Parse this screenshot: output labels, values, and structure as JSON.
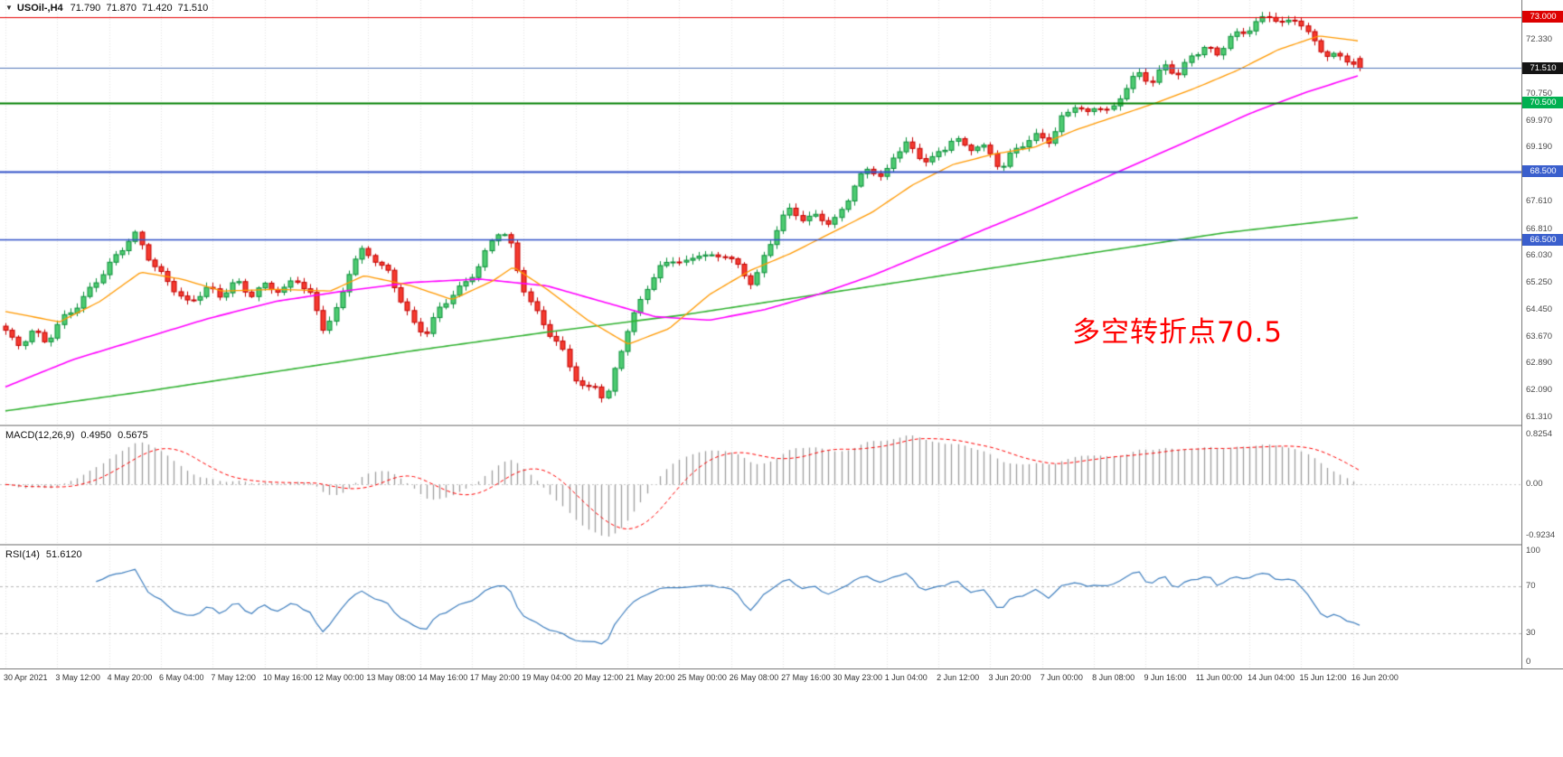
{
  "header": {
    "dropdown_icon": "▼",
    "symbol_period": "USOil-,H4",
    "open": "71.790",
    "high": "71.870",
    "low": "71.420",
    "close": "71.510"
  },
  "annotation": {
    "text": "多空转折点70.5",
    "color": "#ff0000"
  },
  "indicator_labels": {
    "macd": {
      "name": "MACD(12,26,9)",
      "value1": "0.4950",
      "value2": "0.5675"
    },
    "rsi": {
      "name": "RSI(14)",
      "value": "51.6120"
    }
  },
  "chart_data": {
    "type": "candlestick",
    "symbol": "USOil-",
    "timeframe": "H4",
    "candle_count": 210,
    "bars_per_label": 8,
    "price_range": [
      61.1,
      73.5
    ],
    "last_candle": {
      "open": 71.79,
      "high": 71.87,
      "low": 71.42,
      "close": 71.51
    },
    "up_fill": "#4ecb71",
    "up_border": "#0b8f3a",
    "down_fill": "#f43b2f",
    "down_border": "#c40000",
    "close_path": [
      [
        0.0,
        63.8
      ],
      [
        0.008,
        63.35
      ],
      [
        0.02,
        63.9
      ],
      [
        0.03,
        63.55
      ],
      [
        0.042,
        64.15
      ],
      [
        0.055,
        64.6
      ],
      [
        0.068,
        65.4
      ],
      [
        0.08,
        66.0
      ],
      [
        0.09,
        66.45
      ],
      [
        0.096,
        66.6
      ],
      [
        0.104,
        66.0
      ],
      [
        0.113,
        65.55
      ],
      [
        0.125,
        65.1
      ],
      [
        0.135,
        64.65
      ],
      [
        0.148,
        65.05
      ],
      [
        0.158,
        64.8
      ],
      [
        0.17,
        65.3
      ],
      [
        0.181,
        64.95
      ],
      [
        0.192,
        65.2
      ],
      [
        0.204,
        64.9
      ],
      [
        0.214,
        65.35
      ],
      [
        0.225,
        64.9
      ],
      [
        0.235,
        63.95
      ],
      [
        0.245,
        64.5
      ],
      [
        0.255,
        65.7
      ],
      [
        0.263,
        66.1
      ],
      [
        0.272,
        65.95
      ],
      [
        0.282,
        65.6
      ],
      [
        0.292,
        64.8
      ],
      [
        0.302,
        63.95
      ],
      [
        0.31,
        63.7
      ],
      [
        0.32,
        64.4
      ],
      [
        0.33,
        64.95
      ],
      [
        0.34,
        65.3
      ],
      [
        0.35,
        65.8
      ],
      [
        0.358,
        66.35
      ],
      [
        0.365,
        66.75
      ],
      [
        0.372,
        66.45
      ],
      [
        0.38,
        65.3
      ],
      [
        0.39,
        64.55
      ],
      [
        0.4,
        63.9
      ],
      [
        0.41,
        63.3
      ],
      [
        0.42,
        62.45
      ],
      [
        0.428,
        62.05
      ],
      [
        0.436,
        62.3
      ],
      [
        0.443,
        61.8
      ],
      [
        0.451,
        62.9
      ],
      [
        0.458,
        63.75
      ],
      [
        0.466,
        64.4
      ],
      [
        0.474,
        65.1
      ],
      [
        0.482,
        65.6
      ],
      [
        0.492,
        66.0
      ],
      [
        0.502,
        65.85
      ],
      [
        0.512,
        66.1
      ],
      [
        0.522,
        65.9
      ],
      [
        0.532,
        66.05
      ],
      [
        0.544,
        65.6
      ],
      [
        0.552,
        65.25
      ],
      [
        0.562,
        66.2
      ],
      [
        0.572,
        67.0
      ],
      [
        0.58,
        67.35
      ],
      [
        0.59,
        67.05
      ],
      [
        0.6,
        67.3
      ],
      [
        0.61,
        66.95
      ],
      [
        0.618,
        67.4
      ],
      [
        0.628,
        68.1
      ],
      [
        0.638,
        68.6
      ],
      [
        0.648,
        68.3
      ],
      [
        0.657,
        69.1
      ],
      [
        0.665,
        69.35
      ],
      [
        0.673,
        68.9
      ],
      [
        0.682,
        68.75
      ],
      [
        0.692,
        69.05
      ],
      [
        0.7,
        69.55
      ],
      [
        0.71,
        69.2
      ],
      [
        0.72,
        69.3
      ],
      [
        0.728,
        68.9
      ],
      [
        0.735,
        68.5
      ],
      [
        0.744,
        69.05
      ],
      [
        0.752,
        69.35
      ],
      [
        0.762,
        69.6
      ],
      [
        0.772,
        69.4
      ],
      [
        0.78,
        70.0
      ],
      [
        0.79,
        70.4
      ],
      [
        0.798,
        70.1
      ],
      [
        0.806,
        70.5
      ],
      [
        0.816,
        70.25
      ],
      [
        0.826,
        70.9
      ],
      [
        0.836,
        71.3
      ],
      [
        0.846,
        71.05
      ],
      [
        0.856,
        71.6
      ],
      [
        0.866,
        71.4
      ],
      [
        0.876,
        71.9
      ],
      [
        0.886,
        72.1
      ],
      [
        0.894,
        71.8
      ],
      [
        0.904,
        72.4
      ],
      [
        0.914,
        72.6
      ],
      [
        0.924,
        72.9
      ],
      [
        0.934,
        73.05
      ],
      [
        0.944,
        72.7
      ],
      [
        0.954,
        72.95
      ],
      [
        0.964,
        72.4
      ],
      [
        0.976,
        71.95
      ],
      [
        0.988,
        71.8
      ],
      [
        1.0,
        71.51
      ]
    ],
    "overlays": {
      "ma_fast": {
        "color": "#ff9900",
        "width": 1.3,
        "path": [
          [
            0.0,
            64.4
          ],
          [
            0.04,
            64.1
          ],
          [
            0.07,
            64.7
          ],
          [
            0.1,
            65.55
          ],
          [
            0.13,
            65.35
          ],
          [
            0.16,
            65.0
          ],
          [
            0.2,
            65.05
          ],
          [
            0.24,
            65.0
          ],
          [
            0.265,
            65.45
          ],
          [
            0.3,
            65.15
          ],
          [
            0.33,
            64.75
          ],
          [
            0.36,
            65.3
          ],
          [
            0.375,
            65.7
          ],
          [
            0.4,
            65.05
          ],
          [
            0.43,
            64.15
          ],
          [
            0.46,
            63.45
          ],
          [
            0.49,
            63.9
          ],
          [
            0.52,
            64.9
          ],
          [
            0.55,
            65.6
          ],
          [
            0.58,
            66.1
          ],
          [
            0.61,
            66.7
          ],
          [
            0.64,
            67.3
          ],
          [
            0.67,
            68.1
          ],
          [
            0.7,
            68.7
          ],
          [
            0.73,
            69.0
          ],
          [
            0.76,
            69.2
          ],
          [
            0.79,
            69.7
          ],
          [
            0.82,
            70.1
          ],
          [
            0.85,
            70.5
          ],
          [
            0.88,
            70.95
          ],
          [
            0.91,
            71.45
          ],
          [
            0.94,
            72.05
          ],
          [
            0.97,
            72.45
          ],
          [
            1.0,
            72.3
          ]
        ]
      },
      "ma_mid": {
        "color": "#ff00ff",
        "width": 1.6,
        "path": [
          [
            0.0,
            62.2
          ],
          [
            0.05,
            63.0
          ],
          [
            0.1,
            63.6
          ],
          [
            0.15,
            64.2
          ],
          [
            0.2,
            64.7
          ],
          [
            0.25,
            65.0
          ],
          [
            0.3,
            65.25
          ],
          [
            0.35,
            65.35
          ],
          [
            0.4,
            65.15
          ],
          [
            0.44,
            64.7
          ],
          [
            0.48,
            64.25
          ],
          [
            0.52,
            64.15
          ],
          [
            0.56,
            64.45
          ],
          [
            0.6,
            64.9
          ],
          [
            0.64,
            65.45
          ],
          [
            0.68,
            66.1
          ],
          [
            0.72,
            66.75
          ],
          [
            0.76,
            67.4
          ],
          [
            0.8,
            68.1
          ],
          [
            0.84,
            68.8
          ],
          [
            0.88,
            69.5
          ],
          [
            0.92,
            70.2
          ],
          [
            0.96,
            70.8
          ],
          [
            1.0,
            71.3
          ]
        ]
      },
      "ma_slow": {
        "color": "#33b333",
        "width": 1.6,
        "path": [
          [
            0.0,
            61.5
          ],
          [
            0.1,
            62.05
          ],
          [
            0.2,
            62.65
          ],
          [
            0.3,
            63.25
          ],
          [
            0.4,
            63.8
          ],
          [
            0.5,
            64.3
          ],
          [
            0.6,
            64.9
          ],
          [
            0.7,
            65.5
          ],
          [
            0.8,
            66.1
          ],
          [
            0.9,
            66.7
          ],
          [
            1.0,
            67.15
          ]
        ]
      }
    },
    "hlines": [
      {
        "value": 73.0,
        "color": "#e60000",
        "line_width": 1.2,
        "label": "73.000",
        "label_bg": "#dd0000"
      },
      {
        "value": 71.51,
        "color": "#4f74b8",
        "line_width": 1.2,
        "label": "71.510",
        "label_bg": "#141414"
      },
      {
        "value": 70.5,
        "color": "#008000",
        "line_width": 2.0,
        "label": "70.500",
        "label_bg": "#00b050"
      },
      {
        "value": 68.5,
        "color": "#3050c8",
        "line_width": 2.2,
        "label": "68.500",
        "label_bg": "#3a5fcd"
      },
      {
        "value": 66.5,
        "color": "#3050c8",
        "line_width": 1.6,
        "label": "66.500",
        "label_bg": "#3a5fcd"
      }
    ],
    "price_ticks": [
      "72.330",
      "70.750",
      "69.970",
      "69.190",
      "68.390",
      "67.610",
      "66.810",
      "66.030",
      "65.250",
      "64.450",
      "63.670",
      "62.890",
      "62.090",
      "61.310"
    ],
    "time_labels": [
      "30 Apr 2021",
      "3 May 12:00",
      "4 May 20:00",
      "6 May 04:00",
      "7 May 12:00",
      "10 May 16:00",
      "12 May 00:00",
      "13 May 08:00",
      "14 May 16:00",
      "17 May 20:00",
      "19 May 04:00",
      "20 May 12:00",
      "21 May 20:00",
      "25 May 00:00",
      "26 May 08:00",
      "27 May 16:00",
      "30 May 23:00",
      "1 Jun 04:00",
      "2 Jun 12:00",
      "3 Jun 20:00",
      "7 Jun 00:00",
      "8 Jun 08:00",
      "9 Jun 16:00",
      "11 Jun 00:00",
      "14 Jun 04:00",
      "15 Jun 12:00",
      "16 Jun 20:00"
    ],
    "macd": {
      "fast": 12,
      "slow": 26,
      "signal": 9,
      "bar_color": "#9e9e9e",
      "signal_color": "#ff0000",
      "ticks": [
        "0.8254",
        "0.00",
        "-0.9234"
      ]
    },
    "rsi": {
      "period": 14,
      "levels": [
        30,
        70
      ],
      "line_color": "#3f7fbf",
      "level_color": "#b8b8b8",
      "ticks": [
        "100",
        "70",
        "30",
        "0"
      ]
    }
  }
}
